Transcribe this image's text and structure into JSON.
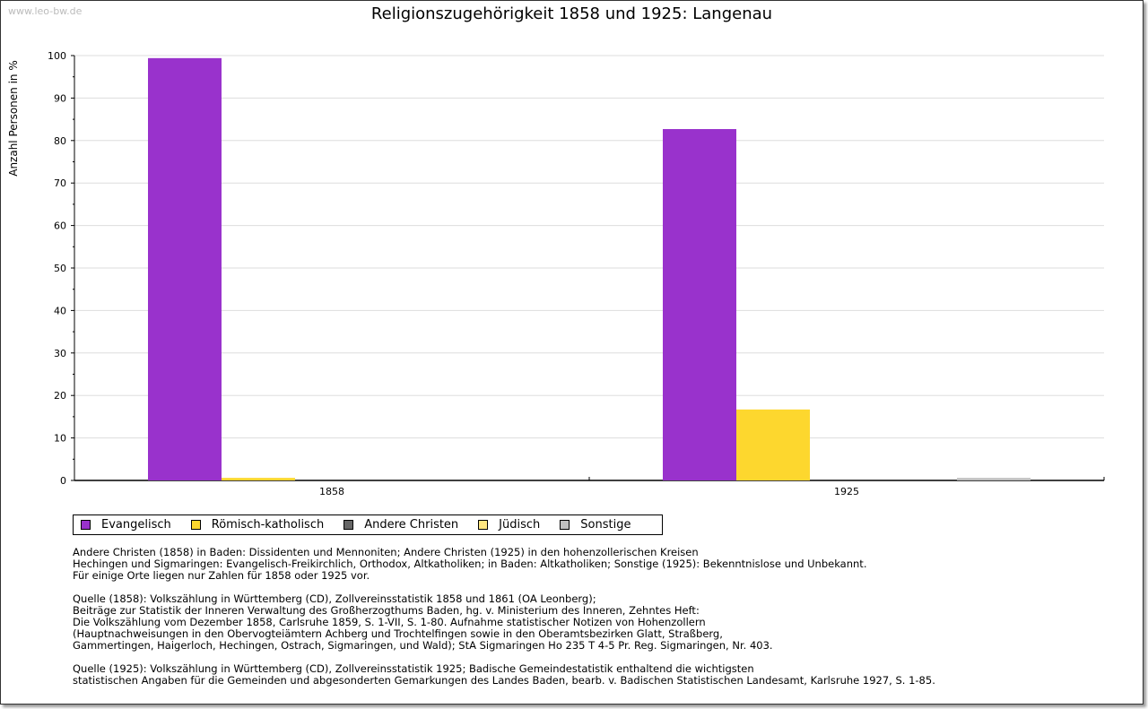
{
  "watermark": "www.leo-bw.de",
  "chart_data": {
    "type": "bar",
    "title": "Religionszugehörigkeit 1858 und 1925: Langenau",
    "xlabel": "",
    "ylabel": "Anzahl Personen in %",
    "ylim": [
      0,
      100
    ],
    "yticks": [
      0,
      10,
      20,
      30,
      40,
      50,
      60,
      70,
      80,
      90,
      100
    ],
    "grid": true,
    "legend_position": "bottom",
    "categories": [
      "1858",
      "1925"
    ],
    "series": [
      {
        "name": "Evangelisch",
        "color": "#9932CC",
        "values": [
          99.4,
          82.7
        ]
      },
      {
        "name": "Römisch-katholisch",
        "color": "#FDD72E",
        "values": [
          0.6,
          16.7
        ]
      },
      {
        "name": "Andere Christen",
        "color": "#666666",
        "values": [
          0,
          0
        ]
      },
      {
        "name": "Jüdisch",
        "color": "#FFE680",
        "values": [
          0,
          0
        ]
      },
      {
        "name": "Sonstige",
        "color": "#C0C0C0",
        "values": [
          0,
          0.6
        ]
      }
    ]
  },
  "notes": [
    "Andere Christen (1858) in Baden: Dissidenten und Mennoniten; Andere Christen (1925) in den hohenzollerischen Kreisen\nHechingen und Sigmaringen: Evangelisch-Freikirchlich, Orthodox, Altkatholiken; in Baden: Altkatholiken; Sonstige (1925): Bekenntnislose und Unbekannt.\nFür einige Orte liegen nur Zahlen für 1858 oder 1925 vor.",
    "Quelle (1858): Volkszählung in Württemberg (CD), Zollvereinsstatistik 1858 und 1861 (OA Leonberg);\nBeiträge zur Statistik der Inneren Verwaltung des Großherzogthums Baden, hg. v. Ministerium des Inneren, Zehntes Heft:\nDie Volkszählung vom Dezember 1858, Carlsruhe 1859, S. 1-VII, S. 1-80. Aufnahme statistischer Notizen von Hohenzollern\n(Hauptnachweisungen in den Obervogteiämtern Achberg und Trochtelfingen sowie in den Oberamtsbezirken Glatt, Straßberg,\nGammertingen, Haigerloch, Hechingen, Ostrach, Sigmaringen, und Wald); StA Sigmaringen Ho 235 T 4-5 Pr. Reg. Sigmaringen, Nr. 403.",
    "Quelle (1925): Volkszählung in Württemberg (CD), Zollvereinsstatistik 1925; Badische Gemeindestatistik enthaltend die wichtigsten\nstatistischen Angaben für die Gemeinden und abgesonderten Gemarkungen des Landes Baden, bearb. v. Badischen Statistischen Landesamt, Karlsruhe 1927, S. 1-85."
  ]
}
